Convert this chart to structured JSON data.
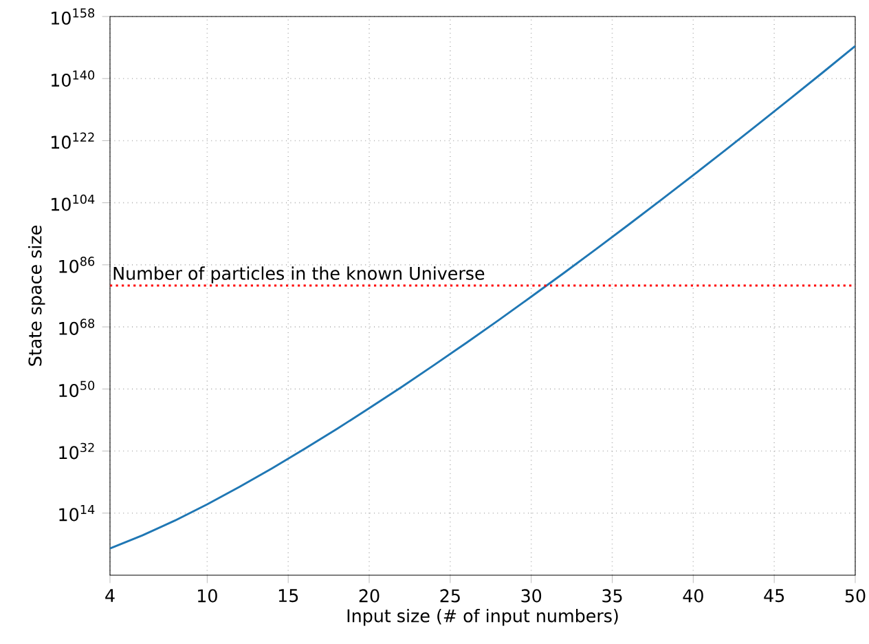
{
  "chart_data": {
    "type": "line",
    "xlabel": "Input size (# of input numbers)",
    "ylabel": "State space size",
    "x": [
      4,
      6,
      8,
      10,
      12,
      14,
      16,
      18,
      20,
      22,
      24,
      26,
      28,
      30,
      32,
      34,
      36,
      38,
      40,
      42,
      44,
      46,
      48,
      50
    ],
    "series": [
      {
        "color": "#1f77b4",
        "values": [
          6000.0,
          34000000.0,
          680000000000.0,
          3.6e+16,
          4.3e+21,
          9.8e+26,
          3.9e+32,
          2.5e+38,
          2.6e+44,
          3.8e+50,
          8.3e+56,
          2.5e+63,
          1e+70,
          5.5e+76,
          3.9e+83,
          3.5e+90,
          4e+97,
          5.6e+104,
          9.8e+111,
          2.1e+119,
          5.4e+126,
          1.7e+134,
          6.2e+141,
          2.7e+149
        ]
      }
    ],
    "xlim": [
      4,
      50
    ],
    "ylim": [
      0.0001,
      1e+158
    ],
    "log": "y",
    "xticks": [
      4,
      10,
      15,
      20,
      25,
      30,
      35,
      40,
      45,
      50
    ],
    "yticks": [
      {
        "value": 100000000000000.0,
        "label": "10$^{14}$"
      },
      {
        "value": 1e+32,
        "label": "10$^{32}$"
      },
      {
        "value": 1e+50,
        "label": "10$^{50}$"
      },
      {
        "value": 1e+68,
        "label": "10$^{68}$"
      },
      {
        "value": 1e+86,
        "label": "10$^{86}$"
      },
      {
        "value": 1e+104,
        "label": "10$^{104}$"
      },
      {
        "value": 1e+122,
        "label": "10$^{122}$"
      },
      {
        "value": 1e+140,
        "label": "10$^{140}$"
      },
      {
        "value": 1e+158,
        "label": "10$^{158}$"
      }
    ],
    "grid": true,
    "line_style": "solid",
    "marker": "none",
    "ref_lines": [
      {
        "axis": "y",
        "value": 1e+80,
        "label": "Number of particles in the known Universe",
        "color": "#ff0000",
        "line_style": "dotted"
      }
    ]
  }
}
